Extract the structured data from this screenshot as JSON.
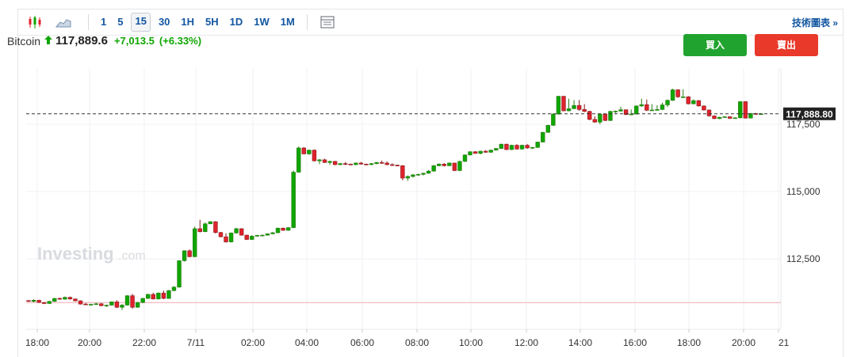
{
  "toolbar": {
    "intervals": [
      "1",
      "5",
      "15",
      "30",
      "1H",
      "5H",
      "1D",
      "1W",
      "1M"
    ],
    "selected": "15",
    "tech_link": "技術圖表 »"
  },
  "header": {
    "symbol": "Bitcoin",
    "price": "117,889.6",
    "change": "+7,013.5",
    "change_pct": "(+6.33%)"
  },
  "buttons": {
    "buy": "買入",
    "sell": "賣出"
  },
  "watermark": {
    "brand": "Investing",
    "suffix": ".com"
  },
  "colors": {
    "up": "#0ea600",
    "down": "#e0222c",
    "accent": "#1256a0",
    "buy": "#21a32f",
    "sell": "#e8392a"
  },
  "chart_data": {
    "type": "candlestick",
    "interval": "15",
    "last_price_label": "117,888.80",
    "y_ticks": [
      {
        "value": 117500,
        "label": "117,500"
      },
      {
        "value": 115000,
        "label": "115,000"
      },
      {
        "value": 112500,
        "label": "112,500"
      }
    ],
    "x_ticks": [
      "18:00",
      "20:00",
      "22:00",
      "7/11",
      "02:00",
      "04:00",
      "06:00",
      "08:00",
      "10:00",
      "12:00",
      "14:00",
      "16:00",
      "18:00",
      "20:00",
      "21"
    ],
    "reference_line": 110876,
    "ylim": [
      109800,
      119300
    ],
    "candles": [
      [
        110950,
        110960,
        110900,
        110920
      ],
      [
        110920,
        111000,
        110880,
        110960
      ],
      [
        110960,
        110980,
        110860,
        110880
      ],
      [
        110880,
        110890,
        110820,
        110840
      ],
      [
        110840,
        110940,
        110820,
        110920
      ],
      [
        110920,
        111050,
        110900,
        111030
      ],
      [
        111030,
        111060,
        110980,
        111000
      ],
      [
        111000,
        111100,
        110980,
        111070
      ],
      [
        111070,
        111100,
        110980,
        111010
      ],
      [
        111010,
        111020,
        110920,
        110940
      ],
      [
        110940,
        110960,
        110800,
        110820
      ],
      [
        110820,
        110860,
        110780,
        110800
      ],
      [
        110800,
        110830,
        110780,
        110810
      ],
      [
        110810,
        110870,
        110800,
        110830
      ],
      [
        110830,
        110860,
        110740,
        110760
      ],
      [
        110760,
        110800,
        110710,
        110780
      ],
      [
        110780,
        110920,
        110760,
        110900
      ],
      [
        110900,
        110960,
        110670,
        110700
      ],
      [
        110700,
        110820,
        110600,
        110780
      ],
      [
        110780,
        111150,
        110770,
        111130
      ],
      [
        111130,
        111200,
        110650,
        110700
      ],
      [
        110700,
        110900,
        110680,
        110880
      ],
      [
        110880,
        111050,
        110850,
        111030
      ],
      [
        111030,
        111200,
        111010,
        111180
      ],
      [
        111180,
        111240,
        110990,
        111010
      ],
      [
        111010,
        111250,
        110990,
        111230
      ],
      [
        111230,
        111320,
        111000,
        111030
      ],
      [
        111030,
        111350,
        111010,
        111320
      ],
      [
        111320,
        111480,
        111300,
        111450
      ],
      [
        111450,
        112450,
        111430,
        112430
      ],
      [
        112430,
        112820,
        112400,
        112800
      ],
      [
        112800,
        112850,
        112560,
        112580
      ],
      [
        112580,
        113700,
        112560,
        113620
      ],
      [
        113620,
        113950,
        113480,
        113510
      ],
      [
        113510,
        113850,
        113490,
        113800
      ],
      [
        113800,
        113900,
        113840,
        113880
      ],
      [
        113880,
        113900,
        113440,
        113480
      ],
      [
        113480,
        113500,
        113300,
        113320
      ],
      [
        113320,
        113450,
        113100,
        113130
      ],
      [
        113130,
        113480,
        113110,
        113460
      ],
      [
        113460,
        113650,
        113440,
        113620
      ],
      [
        113620,
        113640,
        113360,
        113380
      ],
      [
        113380,
        113400,
        113200,
        113220
      ],
      [
        113220,
        113380,
        113200,
        113340
      ],
      [
        113340,
        113390,
        113330,
        113370
      ],
      [
        113370,
        113400,
        113340,
        113380
      ],
      [
        113380,
        113450,
        113360,
        113430
      ],
      [
        113430,
        113500,
        113410,
        113470
      ],
      [
        113470,
        113660,
        113450,
        113640
      ],
      [
        113640,
        113660,
        113540,
        113560
      ],
      [
        113560,
        113680,
        113540,
        113660
      ],
      [
        113660,
        115780,
        113640,
        115720
      ],
      [
        115720,
        116680,
        115700,
        116620
      ],
      [
        116620,
        116650,
        116380,
        116400
      ],
      [
        116400,
        116560,
        116360,
        116540
      ],
      [
        116540,
        116560,
        116120,
        116140
      ],
      [
        116140,
        116210,
        116020,
        116180
      ],
      [
        116180,
        116220,
        116060,
        116080
      ],
      [
        116080,
        116150,
        116000,
        116120
      ],
      [
        116120,
        116140,
        115980,
        116000
      ],
      [
        116000,
        116060,
        115980,
        116040
      ],
      [
        116040,
        116100,
        115980,
        116020
      ],
      [
        116020,
        116040,
        115980,
        116000
      ],
      [
        116000,
        116080,
        115980,
        116060
      ],
      [
        116060,
        116100,
        116000,
        116020
      ],
      [
        116020,
        116040,
        115980,
        116000
      ],
      [
        116000,
        116060,
        115980,
        116040
      ],
      [
        116040,
        116100,
        116010,
        116080
      ],
      [
        116080,
        116150,
        116030,
        116060
      ],
      [
        116060,
        116120,
        115980,
        116000
      ],
      [
        116000,
        116050,
        115950,
        115980
      ],
      [
        115980,
        116000,
        115940,
        115960
      ],
      [
        115960,
        115980,
        115420,
        115500
      ],
      [
        115500,
        115600,
        115400,
        115560
      ],
      [
        115560,
        115650,
        115520,
        115620
      ],
      [
        115620,
        115660,
        115580,
        115640
      ],
      [
        115640,
        115700,
        115600,
        115680
      ],
      [
        115680,
        115800,
        115660,
        115760
      ],
      [
        115760,
        115990,
        115740,
        115960
      ],
      [
        115960,
        116050,
        115940,
        116020
      ],
      [
        116020,
        116060,
        115930,
        115960
      ],
      [
        115960,
        116080,
        115940,
        116060
      ],
      [
        116060,
        116060,
        115760,
        115780
      ],
      [
        115780,
        116150,
        115760,
        116120
      ],
      [
        116120,
        116380,
        116100,
        116360
      ],
      [
        116360,
        116500,
        116340,
        116480
      ],
      [
        116480,
        116500,
        116400,
        116420
      ],
      [
        116420,
        116520,
        116380,
        116500
      ],
      [
        116500,
        116540,
        116440,
        116460
      ],
      [
        116460,
        116560,
        116440,
        116540
      ],
      [
        116540,
        116620,
        116520,
        116600
      ],
      [
        116600,
        116780,
        116580,
        116760
      ],
      [
        116760,
        116780,
        116540,
        116560
      ],
      [
        116560,
        116740,
        116540,
        116720
      ],
      [
        116720,
        116760,
        116560,
        116580
      ],
      [
        116580,
        116740,
        116560,
        116720
      ],
      [
        116720,
        116770,
        116590,
        116620
      ],
      [
        116620,
        116660,
        116580,
        116640
      ],
      [
        116640,
        116850,
        116620,
        116840
      ],
      [
        116840,
        117220,
        116820,
        117200
      ],
      [
        117200,
        117480,
        117180,
        117460
      ],
      [
        117460,
        117900,
        117440,
        117880
      ],
      [
        117880,
        118560,
        117860,
        118540
      ],
      [
        118540,
        118560,
        117980,
        118000
      ],
      [
        118000,
        118450,
        117980,
        118080
      ],
      [
        118080,
        118400,
        118060,
        118200
      ],
      [
        118200,
        118400,
        118000,
        118050
      ],
      [
        118050,
        118250,
        117950,
        117980
      ],
      [
        117980,
        118000,
        117650,
        117680
      ],
      [
        117680,
        117800,
        117560,
        117580
      ],
      [
        117580,
        117900,
        117500,
        117880
      ],
      [
        117880,
        117900,
        117620,
        117640
      ],
      [
        117640,
        118000,
        117620,
        117980
      ],
      [
        117980,
        118010,
        117920,
        117990
      ],
      [
        117990,
        118150,
        117970,
        118040
      ],
      [
        118040,
        118050,
        117840,
        117860
      ],
      [
        117860,
        118050,
        117840,
        117880
      ],
      [
        117880,
        118200,
        117860,
        118180
      ],
      [
        118180,
        118450,
        118150,
        118230
      ],
      [
        118230,
        118420,
        117990,
        118020
      ],
      [
        118020,
        118250,
        118000,
        118030
      ],
      [
        118030,
        118210,
        118000,
        118050
      ],
      [
        118050,
        118300,
        118030,
        118220
      ],
      [
        118220,
        118420,
        118140,
        118390
      ],
      [
        118390,
        118820,
        118370,
        118780
      ],
      [
        118780,
        118800,
        118480,
        118520
      ],
      [
        118520,
        118800,
        118500,
        118520
      ],
      [
        118520,
        118550,
        118240,
        118260
      ],
      [
        118260,
        118420,
        118240,
        118380
      ],
      [
        118380,
        118400,
        118160,
        118180
      ],
      [
        118180,
        118200,
        118010,
        118030
      ],
      [
        118030,
        118050,
        117790,
        117810
      ],
      [
        117810,
        117830,
        117690,
        117710
      ],
      [
        117710,
        117780,
        117690,
        117760
      ],
      [
        117760,
        117800,
        117750,
        117780
      ],
      [
        117780,
        117800,
        117700,
        117720
      ],
      [
        117720,
        117760,
        117700,
        117740
      ],
      [
        117740,
        118360,
        117720,
        118340
      ],
      [
        118340,
        118360,
        117710,
        117730
      ],
      [
        117730,
        117920,
        117720,
        117900
      ],
      [
        117900,
        117920,
        117850,
        117870
      ],
      [
        117870,
        117910,
        117860,
        117890
      ]
    ]
  }
}
